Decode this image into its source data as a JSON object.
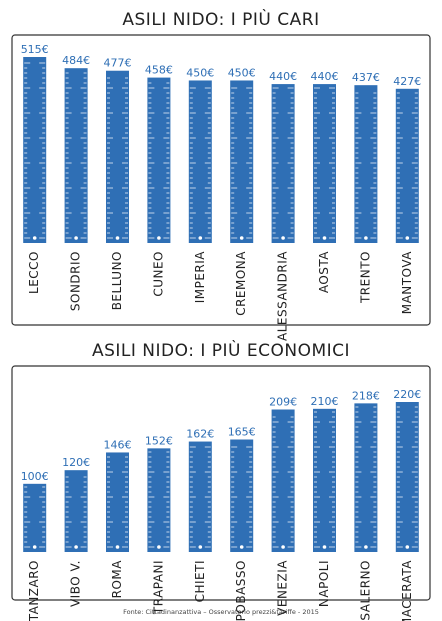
{
  "chart_data": [
    {
      "type": "bar",
      "title": "ASILI NIDO: I PIÙ CARI",
      "categories": [
        "LECCO",
        "SONDRIO",
        "BELLUNO",
        "CUNEO",
        "IMPERIA",
        "CREMONA",
        "ALESSANDRIA",
        "AOSTA",
        "TRENTO",
        "MANTOVA"
      ],
      "values": [
        515,
        484,
        477,
        458,
        450,
        450,
        440,
        440,
        437,
        427
      ],
      "value_labels": [
        "515€",
        "484€",
        "477€",
        "458€",
        "450€",
        "450€",
        "440€",
        "440€",
        "437€",
        "427€"
      ],
      "color": "#2f6fb5"
    },
    {
      "type": "bar",
      "title": "ASILI NIDO: I PIÙ ECONOMICI",
      "categories": [
        "CATANZARO",
        "VIBO V.",
        "ROMA",
        "TRAPANI",
        "CHIETI",
        "CAMPOBASSO",
        "VENEZIA",
        "NAPOLI",
        "SALERNO",
        "MACERATA"
      ],
      "values": [
        100,
        120,
        146,
        152,
        162,
        165,
        209,
        210,
        218,
        220
      ],
      "value_labels": [
        "100€",
        "120€",
        "146€",
        "152€",
        "162€",
        "165€",
        "209€",
        "210€",
        "218€",
        "220€"
      ],
      "color": "#2f6fb5"
    }
  ],
  "source": "Fonte: Cittadinanzattiva – Osservatorio prezzi&tariffe - 2015"
}
